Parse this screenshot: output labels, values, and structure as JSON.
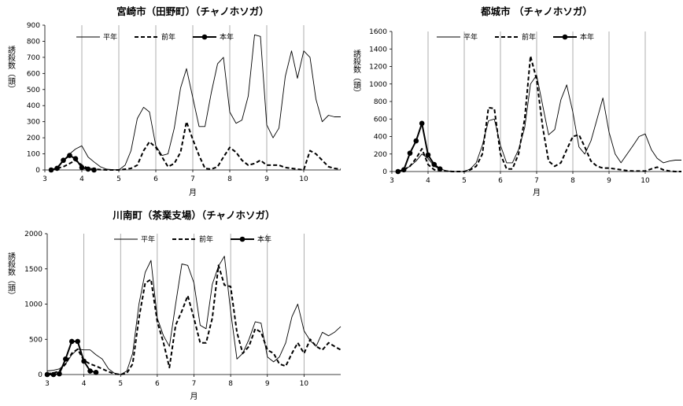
{
  "chart_data": [
    {
      "type": "line",
      "title": "宮崎市（田野町）（チャノホソガ）",
      "xlabel": "月",
      "ylabel": "誘殺数（頭）",
      "xlim": [
        3,
        11
      ],
      "ylim": [
        0,
        900
      ],
      "yticks": [
        0,
        100,
        200,
        300,
        400,
        500,
        600,
        700,
        800,
        900
      ],
      "xticks": [
        3,
        4,
        5,
        6,
        7,
        8,
        9,
        10
      ],
      "legend": [
        "平年",
        "前年",
        "本年"
      ],
      "series": [
        {
          "name": "平年",
          "style": "solid-thin",
          "x": [
            3.3,
            3.5,
            3.67,
            3.83,
            4.0,
            4.17,
            4.33,
            4.5,
            4.67,
            4.83,
            5.0,
            5.17,
            5.33,
            5.5,
            5.67,
            5.83,
            6.0,
            6.17,
            6.33,
            6.5,
            6.67,
            6.83,
            7.0,
            7.17,
            7.33,
            7.5,
            7.67,
            7.83,
            8.0,
            8.17,
            8.33,
            8.5,
            8.67,
            8.83,
            9.0,
            9.17,
            9.33,
            9.5,
            9.67,
            9.83,
            10.0,
            10.17,
            10.33,
            10.5,
            10.67,
            10.83,
            11.0
          ],
          "y": [
            10,
            60,
            100,
            130,
            150,
            80,
            50,
            20,
            5,
            2,
            0,
            30,
            120,
            320,
            390,
            360,
            150,
            90,
            100,
            260,
            510,
            630,
            450,
            270,
            270,
            480,
            660,
            700,
            360,
            290,
            310,
            460,
            840,
            830,
            280,
            200,
            260,
            580,
            740,
            570,
            740,
            700,
            440,
            300,
            340,
            330,
            330
          ]
        },
        {
          "name": "前年",
          "style": "dashed",
          "x": [
            3.17,
            3.33,
            3.5,
            3.67,
            3.83,
            4.0,
            4.17,
            4.33,
            4.5,
            4.67,
            4.83,
            5.0,
            5.17,
            5.33,
            5.5,
            5.67,
            5.83,
            6.0,
            6.17,
            6.33,
            6.5,
            6.67,
            6.83,
            7.0,
            7.17,
            7.33,
            7.5,
            7.67,
            7.83,
            8.0,
            8.17,
            8.33,
            8.5,
            8.67,
            8.83,
            9.0,
            9.17,
            9.33,
            9.5,
            9.67,
            9.83,
            10.0,
            10.17,
            10.33,
            10.5,
            10.67,
            10.83,
            11.0
          ],
          "y": [
            2,
            10,
            20,
            40,
            60,
            30,
            10,
            5,
            2,
            0,
            0,
            0,
            5,
            10,
            30,
            120,
            175,
            140,
            80,
            20,
            40,
            110,
            300,
            190,
            90,
            10,
            5,
            20,
            80,
            140,
            110,
            60,
            30,
            40,
            60,
            30,
            30,
            30,
            15,
            10,
            5,
            0,
            120,
            100,
            60,
            20,
            10,
            5
          ]
        },
        {
          "name": "本年",
          "style": "solid-dots",
          "x": [
            3.17,
            3.33,
            3.5,
            3.67,
            3.83,
            4.0,
            4.17,
            4.33
          ],
          "y": [
            0,
            10,
            60,
            90,
            70,
            15,
            5,
            0
          ]
        }
      ]
    },
    {
      "type": "line",
      "title": "都城市 （チャノホソガ）",
      "xlabel": "月",
      "ylabel": "誘殺数（頭）",
      "xlim": [
        3,
        11
      ],
      "ylim": [
        0,
        1600
      ],
      "yticks": [
        0,
        200,
        400,
        600,
        800,
        1000,
        1200,
        1400,
        1600
      ],
      "xticks": [
        3,
        4,
        5,
        6,
        7,
        8,
        9,
        10
      ],
      "legend": [
        "平年",
        "前年",
        "本年"
      ],
      "series": [
        {
          "name": "平年",
          "style": "solid-thin",
          "x": [
            3.17,
            3.33,
            3.5,
            3.67,
            3.83,
            4.0,
            4.17,
            4.33,
            4.5,
            4.67,
            4.83,
            5.0,
            5.17,
            5.33,
            5.5,
            5.67,
            5.83,
            6.0,
            6.17,
            6.33,
            6.5,
            6.67,
            6.83,
            7.0,
            7.17,
            7.33,
            7.5,
            7.67,
            7.83,
            8.0,
            8.17,
            8.33,
            8.5,
            8.67,
            8.83,
            9.0,
            9.17,
            9.33,
            9.5,
            9.67,
            9.83,
            10.0,
            10.17,
            10.33,
            10.5,
            10.67,
            10.83,
            11.0
          ],
          "y": [
            5,
            20,
            60,
            120,
            200,
            150,
            60,
            30,
            10,
            0,
            0,
            0,
            30,
            100,
            300,
            580,
            600,
            300,
            100,
            100,
            250,
            500,
            1000,
            1100,
            750,
            420,
            480,
            820,
            990,
            680,
            280,
            200,
            350,
            600,
            840,
            450,
            200,
            100,
            200,
            300,
            400,
            430,
            250,
            150,
            100,
            120,
            130,
            130
          ]
        },
        {
          "name": "前年",
          "style": "dashed",
          "x": [
            3.17,
            3.33,
            3.5,
            3.67,
            3.83,
            4.0,
            4.17,
            4.33,
            4.5,
            4.67,
            4.83,
            5.0,
            5.17,
            5.33,
            5.5,
            5.67,
            5.83,
            6.0,
            6.17,
            6.33,
            6.5,
            6.67,
            6.83,
            7.0,
            7.17,
            7.33,
            7.5,
            7.67,
            7.83,
            8.0,
            8.17,
            8.33,
            8.5,
            8.67,
            8.83,
            9.0,
            9.17,
            9.33,
            9.5,
            9.67,
            9.83,
            10.0,
            10.17,
            10.33,
            10.5,
            10.67,
            10.83,
            11.0
          ],
          "y": [
            0,
            20,
            60,
            150,
            260,
            80,
            20,
            10,
            5,
            0,
            0,
            0,
            20,
            60,
            200,
            730,
            720,
            200,
            30,
            30,
            200,
            600,
            1320,
            1050,
            500,
            120,
            60,
            100,
            250,
            400,
            420,
            280,
            120,
            60,
            40,
            40,
            30,
            20,
            10,
            5,
            5,
            5,
            30,
            50,
            20,
            5,
            0,
            0
          ]
        },
        {
          "name": "本年",
          "style": "solid-dots",
          "x": [
            3.17,
            3.33,
            3.5,
            3.67,
            3.83,
            4.0,
            4.17,
            4.33
          ],
          "y": [
            0,
            20,
            210,
            350,
            550,
            190,
            80,
            30
          ]
        }
      ]
    },
    {
      "type": "line",
      "title": "川南町（茶業支場）（チャノホソガ）",
      "xlabel": "月",
      "ylabel": "誘殺数（頭）",
      "xlim": [
        3,
        11
      ],
      "ylim": [
        0,
        2000
      ],
      "yticks": [
        0,
        500,
        1000,
        1500,
        2000
      ],
      "xticks": [
        3,
        4,
        5,
        6,
        7,
        8,
        9,
        10
      ],
      "legend": [
        "平年",
        "前年",
        "本年"
      ],
      "series": [
        {
          "name": "平年",
          "style": "solid-thin",
          "x": [
            3.0,
            3.17,
            3.33,
            3.5,
            3.67,
            3.83,
            4.0,
            4.17,
            4.33,
            4.5,
            4.67,
            4.83,
            5.0,
            5.17,
            5.33,
            5.5,
            5.67,
            5.83,
            6.0,
            6.17,
            6.33,
            6.5,
            6.67,
            6.83,
            7.0,
            7.17,
            7.33,
            7.5,
            7.67,
            7.83,
            8.0,
            8.17,
            8.33,
            8.5,
            8.67,
            8.83,
            9.0,
            9.17,
            9.33,
            9.5,
            9.67,
            9.83,
            10.0,
            10.17,
            10.33,
            10.5,
            10.67,
            10.83,
            11.0
          ],
          "y": [
            50,
            60,
            80,
            150,
            280,
            360,
            350,
            350,
            280,
            220,
            80,
            20,
            0,
            50,
            300,
            1000,
            1450,
            1620,
            800,
            550,
            400,
            1000,
            1570,
            1550,
            1300,
            700,
            650,
            1280,
            1540,
            1680,
            900,
            220,
            300,
            500,
            750,
            730,
            250,
            180,
            250,
            450,
            820,
            1000,
            620,
            480,
            400,
            600,
            550,
            600,
            680
          ]
        },
        {
          "name": "前年",
          "style": "dashed",
          "x": [
            3.0,
            3.17,
            3.33,
            3.5,
            3.67,
            3.83,
            4.0,
            4.17,
            4.33,
            4.5,
            4.67,
            4.83,
            5.0,
            5.17,
            5.33,
            5.5,
            5.67,
            5.83,
            6.0,
            6.17,
            6.33,
            6.5,
            6.67,
            6.83,
            7.0,
            7.17,
            7.33,
            7.5,
            7.67,
            7.83,
            8.0,
            8.17,
            8.33,
            8.5,
            8.67,
            8.83,
            9.0,
            9.17,
            9.33,
            9.5,
            9.67,
            9.83,
            10.0,
            10.17,
            10.33,
            10.5,
            10.67,
            10.83,
            11.0
          ],
          "y": [
            10,
            20,
            50,
            150,
            300,
            360,
            200,
            150,
            120,
            80,
            40,
            10,
            0,
            20,
            150,
            800,
            1300,
            1350,
            750,
            450,
            100,
            700,
            900,
            1120,
            800,
            450,
            450,
            800,
            1550,
            1270,
            1250,
            600,
            300,
            400,
            650,
            600,
            350,
            300,
            150,
            120,
            300,
            450,
            300,
            500,
            400,
            350,
            450,
            400,
            350
          ]
        },
        {
          "name": "本年",
          "style": "solid-dots",
          "x": [
            3.0,
            3.17,
            3.33,
            3.5,
            3.67,
            3.83,
            4.0,
            4.17,
            4.33
          ],
          "y": [
            0,
            0,
            10,
            220,
            470,
            470,
            190,
            50,
            30
          ]
        }
      ]
    }
  ]
}
